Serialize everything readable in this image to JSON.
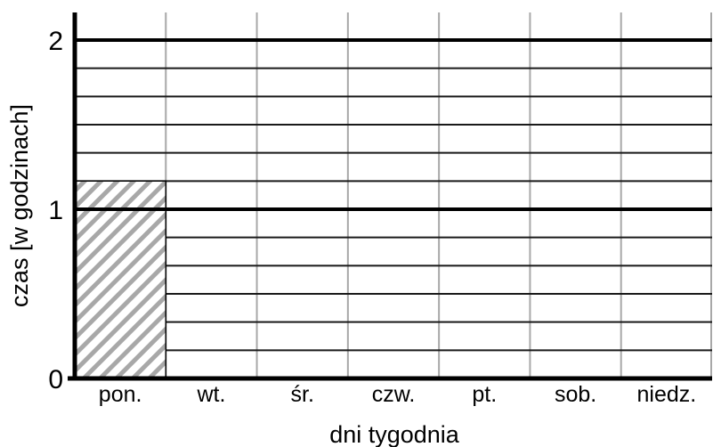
{
  "chart_data": {
    "type": "bar",
    "categories": [
      "pon.",
      "wt.",
      "śr.",
      "czw.",
      "pt.",
      "sob.",
      "niedz."
    ],
    "values": [
      1.167,
      0,
      0,
      0,
      0,
      0,
      0
    ],
    "xlabel": "dni tygodnia",
    "ylabel": "czas [w godzinach]",
    "ylim": [
      0,
      2
    ],
    "yticks": [
      "0",
      "1",
      "2"
    ],
    "minor_step": 0.1667,
    "grid": true,
    "bar_fill": "diagonal-hatch",
    "colors": {
      "hatch": "#a8a8a8",
      "major_grid": "#000000",
      "minor_grid": "#1a1a1a",
      "vertical_grid": "#a8a8a8"
    }
  }
}
